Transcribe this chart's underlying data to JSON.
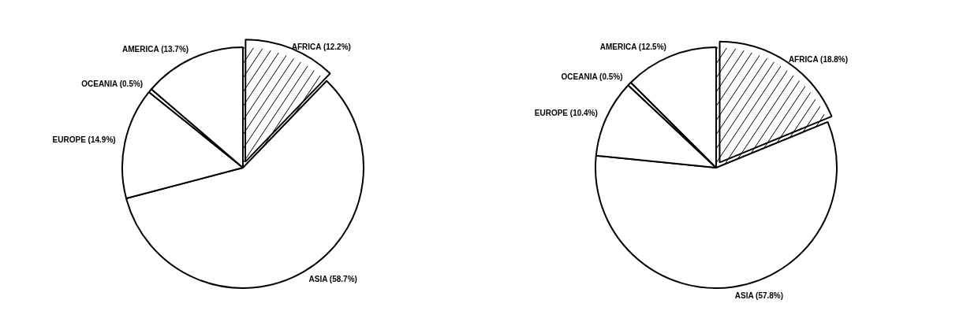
{
  "chart_data": [
    {
      "type": "pie",
      "categories": [
        "AFRICA",
        "ASIA",
        "EUROPE",
        "OCEANIA",
        "AMERICA"
      ],
      "values": [
        12.2,
        58.7,
        14.9,
        0.5,
        13.7
      ],
      "value_labels": [
        "(12.2%)",
        "(58.7%)",
        "(14.9%)",
        "(0.5%)",
        "(13.7%)"
      ],
      "colors": [
        "#ffffff",
        "#ffffff",
        "#ffffff",
        "#ffffff",
        "#ffffff"
      ],
      "legend": false
    },
    {
      "type": "pie",
      "categories": [
        "AFRICA",
        "ASIA",
        "EUROPE",
        "OCEANIA",
        "AMERICA"
      ],
      "values": [
        18.8,
        57.8,
        10.4,
        0.5,
        12.5
      ],
      "value_labels": [
        "(18.8%)",
        "(57.8%)",
        "(10.4%)",
        "(0.5%)",
        "(12.5%)"
      ],
      "colors": [
        "#ffffff",
        "#ffffff",
        "#ffffff",
        "#ffffff",
        "#ffffff"
      ],
      "legend": false
    }
  ]
}
